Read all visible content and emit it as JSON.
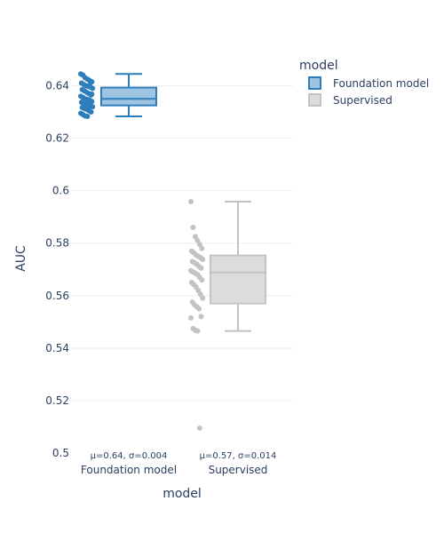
{
  "chart_data": {
    "type": "box",
    "xlabel": "model",
    "ylabel": "AUC",
    "ylim": [
      0.5,
      0.65
    ],
    "yticks": [
      0.5,
      0.52,
      0.54,
      0.56,
      0.58,
      0.6,
      0.62,
      0.64
    ],
    "ytick_labels": [
      "0.5",
      "0.52",
      "0.54",
      "0.56",
      "0.58",
      "0.6",
      "0.62",
      "0.64"
    ],
    "grid": true,
    "legend": {
      "title": "model",
      "position": "top-right"
    },
    "series": [
      {
        "name": "Foundation model",
        "color": "#2e7ebc",
        "fill": "#9ec4e2",
        "q1": 0.6325,
        "median": 0.635,
        "q3": 0.6393,
        "whisker_low": 0.6283,
        "whisker_high": 0.6445,
        "points": [
          0.6445,
          0.644,
          0.643,
          0.6425,
          0.642,
          0.6415,
          0.641,
          0.6405,
          0.64,
          0.6398,
          0.6395,
          0.639,
          0.6385,
          0.638,
          0.6375,
          0.637,
          0.6365,
          0.636,
          0.6355,
          0.635,
          0.6348,
          0.6345,
          0.634,
          0.6337,
          0.6333,
          0.633,
          0.6327,
          0.6323,
          0.632,
          0.6317,
          0.6313,
          0.631,
          0.6305,
          0.63,
          0.6295,
          0.629,
          0.6285,
          0.6283,
          0.6402,
          0.6368
        ],
        "annotation": "μ=0.64, σ=0.004"
      },
      {
        "name": "Supervised",
        "color": "#c3c3c3",
        "fill": "#dcdcdc",
        "q1": 0.557,
        "median": 0.5688,
        "q3": 0.5753,
        "whisker_low": 0.5465,
        "whisker_high": 0.5958,
        "points": [
          0.5958,
          0.586,
          0.5825,
          0.581,
          0.5795,
          0.578,
          0.577,
          0.5763,
          0.5755,
          0.575,
          0.5745,
          0.5738,
          0.573,
          0.5725,
          0.572,
          0.5712,
          0.5705,
          0.5695,
          0.569,
          0.5685,
          0.568,
          0.567,
          0.566,
          0.565,
          0.5642,
          0.5633,
          0.562,
          0.5605,
          0.559,
          0.5575,
          0.5565,
          0.5558,
          0.555,
          0.552,
          0.5515,
          0.5475,
          0.5468,
          0.5465,
          0.5095
        ],
        "annotation": "μ=0.57, σ=0.014"
      }
    ]
  }
}
